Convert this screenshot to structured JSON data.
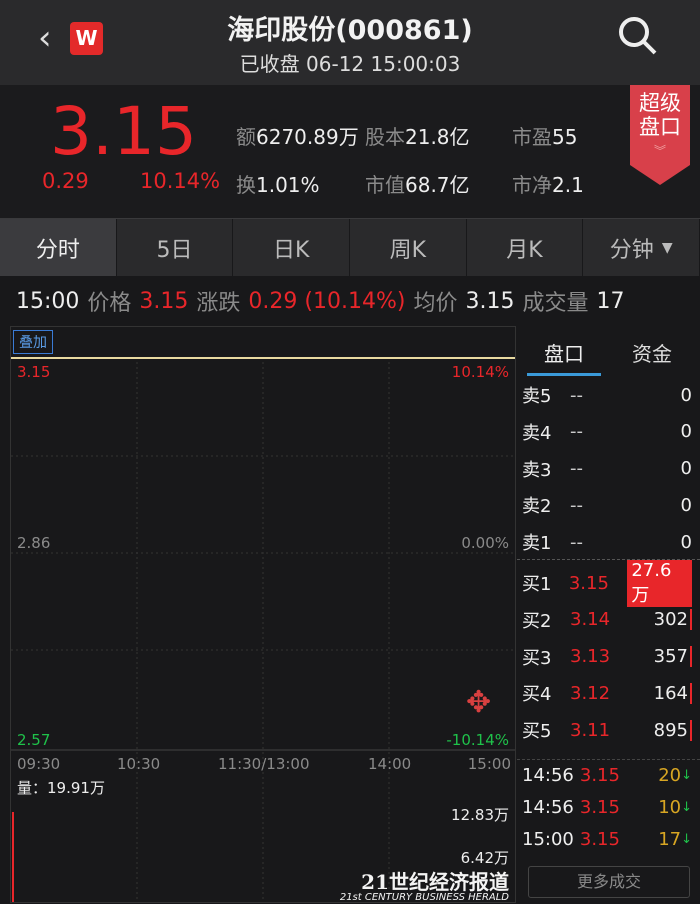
{
  "header": {
    "title": "海印股份(000861)",
    "subtitle": "已收盘 06-12 15:00:03",
    "logo": "W",
    "back_icon": "chevron-left-icon",
    "search_icon": "search-icon"
  },
  "quote": {
    "price": "3.15",
    "change": "0.29",
    "change_pct": "10.14%",
    "stats": [
      {
        "label": "额",
        "value": "6270.89万"
      },
      {
        "label": "股本",
        "value": "21.8亿"
      },
      {
        "label": "市盈",
        "value": "55"
      },
      {
        "label": "换",
        "value": "1.01%"
      },
      {
        "label": "市值",
        "value": "68.7亿"
      },
      {
        "label": "市净",
        "value": "2.1"
      }
    ],
    "super_button": [
      "超级",
      "盘口"
    ]
  },
  "tabs": [
    "分时",
    "5日",
    "日K",
    "周K",
    "月K",
    "分钟"
  ],
  "info": {
    "time": "15:00",
    "price_label": "价格",
    "price": "3.15",
    "change_label": "涨跌",
    "change": "0.29 (10.14%)",
    "avg_label": "均价",
    "avg": "3.15",
    "vol_label": "成交量",
    "vol": "17"
  },
  "chart": {
    "overlay_button": "叠加",
    "y_high": "3.15",
    "y_mid": "2.86",
    "y_low": "2.57",
    "pct_high": "10.14%",
    "pct_mid": "0.00%",
    "pct_low": "-10.14%",
    "x_labels": [
      "09:30",
      "10:30",
      "11:30/13:00",
      "14:00",
      "15:00"
    ],
    "volume_label": "量：19.91万",
    "vol_high": "12.83万",
    "vol_mid": "6.42万",
    "line_color": "#e8d9a0"
  },
  "panel": {
    "tabs": [
      "盘口",
      "资金"
    ],
    "asks": [
      {
        "label": "卖5",
        "price": "--",
        "vol": "0"
      },
      {
        "label": "卖4",
        "price": "--",
        "vol": "0"
      },
      {
        "label": "卖3",
        "price": "--",
        "vol": "0"
      },
      {
        "label": "卖2",
        "price": "--",
        "vol": "0"
      },
      {
        "label": "卖1",
        "price": "--",
        "vol": "0"
      }
    ],
    "bids": [
      {
        "label": "买1",
        "price": "3.15",
        "vol": "27.6万"
      },
      {
        "label": "买2",
        "price": "3.14",
        "vol": "302"
      },
      {
        "label": "买3",
        "price": "3.13",
        "vol": "357"
      },
      {
        "label": "买4",
        "price": "3.12",
        "vol": "164"
      },
      {
        "label": "买5",
        "price": "3.11",
        "vol": "895"
      }
    ],
    "trades": [
      {
        "time": "14:56",
        "price": "3.15",
        "vol": "20"
      },
      {
        "time": "14:56",
        "price": "3.15",
        "vol": "10"
      },
      {
        "time": "15:00",
        "price": "3.15",
        "vol": "17"
      }
    ],
    "more_button": "更多成交"
  },
  "watermark": {
    "cn": "21世纪经济报道",
    "en": "21st CENTURY BUSINESS HERALD"
  }
}
